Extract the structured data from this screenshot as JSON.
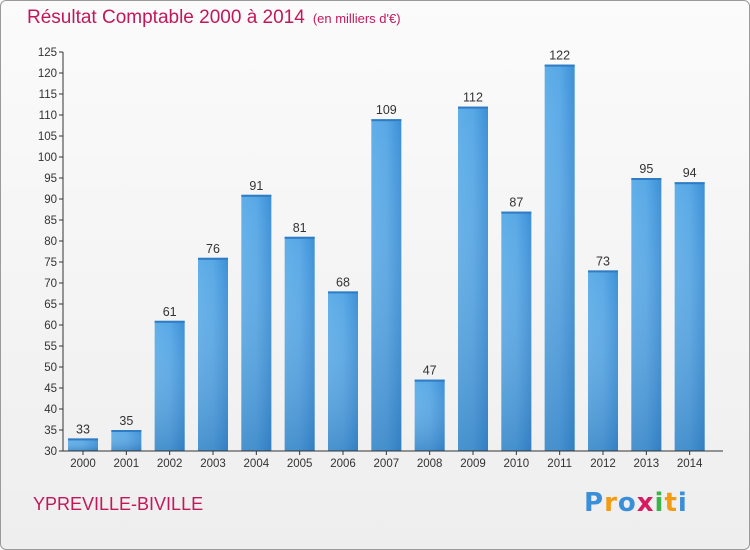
{
  "chart_data": {
    "type": "bar",
    "title": "Résultat Comptable 2000 à 2014",
    "subtitle": "(en milliers d'€)",
    "xlabel": "",
    "ylabel": "",
    "categories": [
      "2000",
      "2001",
      "2002",
      "2003",
      "2004",
      "2005",
      "2006",
      "2007",
      "2008",
      "2009",
      "2010",
      "2011",
      "2012",
      "2013",
      "2014"
    ],
    "values": [
      33,
      35,
      61,
      76,
      91,
      81,
      68,
      109,
      47,
      112,
      87,
      122,
      73,
      95,
      94
    ],
    "ylim": [
      30,
      125
    ],
    "yticks": [
      30,
      35,
      40,
      45,
      50,
      55,
      60,
      65,
      70,
      75,
      80,
      85,
      90,
      95,
      100,
      105,
      110,
      115,
      120,
      125
    ],
    "grid": false,
    "bar_color": "#3d8fd6"
  },
  "footer": {
    "city": "YPREVILLE-BIVILLE",
    "brand_letters": [
      "P",
      "r",
      "o",
      "x",
      "i",
      "t",
      "i"
    ],
    "brand_colors": [
      "#3b8fd8",
      "#f39c12",
      "#3b8fd8",
      "#d81b60",
      "#3bb54a",
      "#f39c12",
      "#3b8fd8"
    ]
  },
  "colors": {
    "title": "#c2185b",
    "axis": "#333333",
    "value_label": "#333333"
  }
}
